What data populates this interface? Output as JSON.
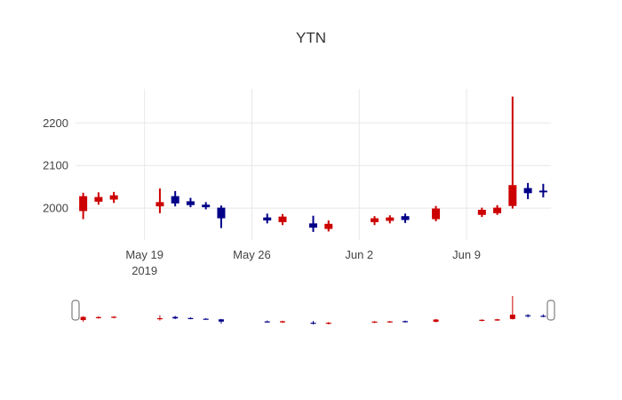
{
  "title": "YTN",
  "chart_data": {
    "type": "candlestick",
    "title": "YTN",
    "increasing_color": "#cc0000",
    "decreasing_color": "#000088",
    "grid": true,
    "grid_color": "#e8e8e8",
    "tick_color": "#444444",
    "background": "#ffffff",
    "rangeslider": true,
    "legend": "none",
    "yticks": [
      2000,
      2100,
      2200
    ],
    "ylim": [
      1925,
      2280
    ],
    "xrange": [
      "2019-05-14T12:00:00",
      "2019-06-14T12:00:00"
    ],
    "xticks": [
      {
        "date": "2019-05-19",
        "label": "May 19",
        "sublabel": "2019"
      },
      {
        "date": "2019-05-26",
        "label": "May 26",
        "sublabel": ""
      },
      {
        "date": "2019-06-02",
        "label": "Jun 2",
        "sublabel": ""
      },
      {
        "date": "2019-06-09",
        "label": "Jun 9",
        "sublabel": ""
      }
    ],
    "candles": [
      {
        "date": "2019-05-15",
        "open": 1993,
        "high": 2036,
        "low": 1974,
        "close": 2028
      },
      {
        "date": "2019-05-16",
        "open": 2015,
        "high": 2037,
        "low": 2008,
        "close": 2026
      },
      {
        "date": "2019-05-17",
        "open": 2020,
        "high": 2038,
        "low": 2012,
        "close": 2030
      },
      {
        "date": "2019-05-20",
        "open": 2004,
        "high": 2046,
        "low": 1988,
        "close": 2014
      },
      {
        "date": "2019-05-21",
        "open": 2028,
        "high": 2040,
        "low": 2004,
        "close": 2011
      },
      {
        "date": "2019-05-22",
        "open": 2016,
        "high": 2024,
        "low": 2002,
        "close": 2007
      },
      {
        "date": "2019-05-23",
        "open": 2008,
        "high": 2014,
        "low": 1997,
        "close": 2002
      },
      {
        "date": "2019-05-24",
        "open": 2001,
        "high": 2006,
        "low": 1953,
        "close": 1976
      },
      {
        "date": "2019-05-27",
        "open": 1978,
        "high": 1987,
        "low": 1964,
        "close": 1971
      },
      {
        "date": "2019-05-28",
        "open": 1967,
        "high": 1986,
        "low": 1960,
        "close": 1980
      },
      {
        "date": "2019-05-30",
        "open": 1964,
        "high": 1982,
        "low": 1944,
        "close": 1954
      },
      {
        "date": "2019-05-31",
        "open": 1951,
        "high": 1971,
        "low": 1945,
        "close": 1963
      },
      {
        "date": "2019-06-03",
        "open": 1967,
        "high": 1981,
        "low": 1960,
        "close": 1976
      },
      {
        "date": "2019-06-04",
        "open": 1970,
        "high": 1983,
        "low": 1964,
        "close": 1978
      },
      {
        "date": "2019-06-05",
        "open": 1981,
        "high": 1987,
        "low": 1965,
        "close": 1972
      },
      {
        "date": "2019-06-07",
        "open": 1974,
        "high": 2005,
        "low": 1969,
        "close": 1999
      },
      {
        "date": "2019-06-10",
        "open": 1984,
        "high": 2001,
        "low": 1979,
        "close": 1996
      },
      {
        "date": "2019-06-11",
        "open": 1988,
        "high": 2007,
        "low": 1984,
        "close": 2001
      },
      {
        "date": "2019-06-12",
        "open": 2005,
        "high": 2262,
        "low": 1999,
        "close": 2054
      },
      {
        "date": "2019-06-13",
        "open": 2047,
        "high": 2059,
        "low": 2021,
        "close": 2035
      },
      {
        "date": "2019-06-14",
        "open": 2041,
        "high": 2057,
        "low": 2025,
        "close": 2037
      }
    ]
  }
}
